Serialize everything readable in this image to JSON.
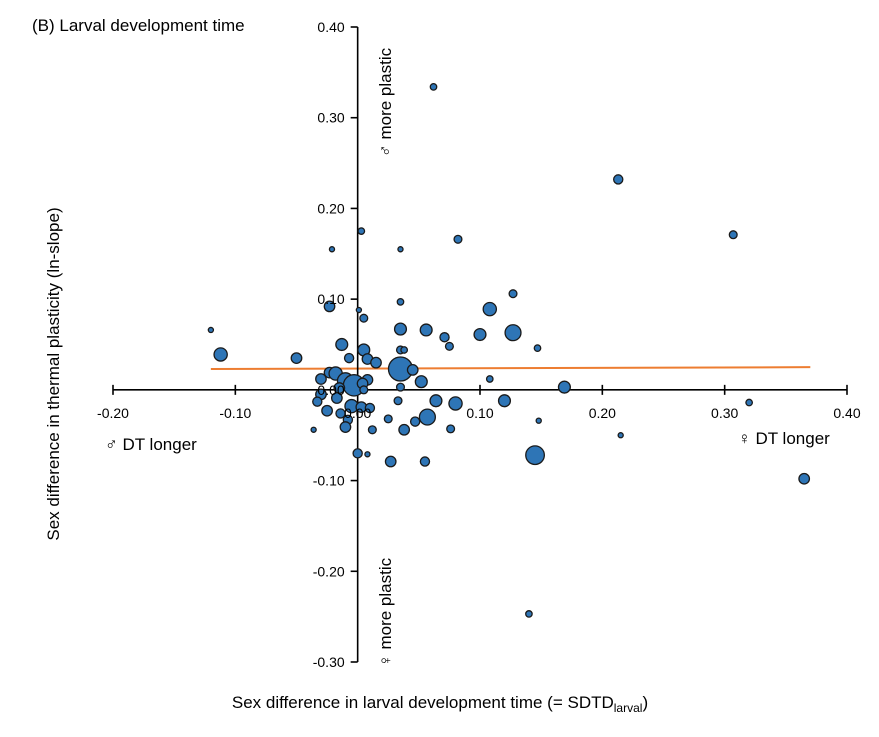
{
  "chart_data": {
    "type": "scatter",
    "title": "(B) Larval development time",
    "xlabel": "Sex difference in larval development time (= SDTD",
    "xlabel_sub": "larval",
    "xlabel_end": ")",
    "ylabel": "Sex difference in thermal plasticity (ln-slope)",
    "xlim": [
      -0.2,
      0.4
    ],
    "ylim": [
      -0.3,
      0.4
    ],
    "xticks": [
      "-0.20",
      "-0.10",
      "0.00",
      "0.10",
      "0.20",
      "0.30",
      "0.40"
    ],
    "yticks": [
      "-0.30",
      "-0.20",
      "-0.10",
      "0.00",
      "0.10",
      "0.20",
      "0.30",
      "0.40"
    ],
    "xtick_values": [
      -0.2,
      -0.1,
      0.0,
      0.1,
      0.2,
      0.3,
      0.4
    ],
    "ytick_values": [
      -0.3,
      -0.2,
      -0.1,
      0.0,
      0.1,
      0.2,
      0.3,
      0.4
    ],
    "annotations": {
      "male_dt_longer": "♂ DT longer",
      "female_dt_longer": "♀ DT longer",
      "male_more_plastic": "♂ more plastic",
      "female_more_plastic": "♀ more plastic"
    },
    "trend_line": {
      "x": [
        -0.12,
        0.37
      ],
      "y": [
        0.023,
        0.025
      ],
      "color": "#ed7d31"
    },
    "point_color": "#2e75b6",
    "points": [
      {
        "x": 0.062,
        "y": 0.334,
        "size": 1.5
      },
      {
        "x": 0.213,
        "y": 0.232,
        "size": 2.5
      },
      {
        "x": 0.307,
        "y": 0.171,
        "size": 2
      },
      {
        "x": 0.003,
        "y": 0.175,
        "size": 1.5
      },
      {
        "x": 0.082,
        "y": 0.166,
        "size": 2
      },
      {
        "x": -0.021,
        "y": 0.155,
        "size": 1
      },
      {
        "x": 0.035,
        "y": 0.155,
        "size": 1
      },
      {
        "x": 0.127,
        "y": 0.106,
        "size": 2
      },
      {
        "x": 0.035,
        "y": 0.097,
        "size": 1.5
      },
      {
        "x": -0.023,
        "y": 0.092,
        "size": 3
      },
      {
        "x": 0.108,
        "y": 0.089,
        "size": 4
      },
      {
        "x": 0.001,
        "y": 0.088,
        "size": 1
      },
      {
        "x": 0.005,
        "y": 0.079,
        "size": 2
      },
      {
        "x": -0.12,
        "y": 0.066,
        "size": 1
      },
      {
        "x": 0.035,
        "y": 0.067,
        "size": 3.5
      },
      {
        "x": 0.056,
        "y": 0.066,
        "size": 3.5
      },
      {
        "x": 0.127,
        "y": 0.063,
        "size": 5
      },
      {
        "x": 0.1,
        "y": 0.061,
        "size": 3.5
      },
      {
        "x": 0.071,
        "y": 0.058,
        "size": 2.5
      },
      {
        "x": -0.013,
        "y": 0.05,
        "size": 3.5
      },
      {
        "x": 0.075,
        "y": 0.048,
        "size": 2
      },
      {
        "x": 0.035,
        "y": 0.044,
        "size": 2
      },
      {
        "x": 0.147,
        "y": 0.046,
        "size": 1.5
      },
      {
        "x": -0.112,
        "y": 0.039,
        "size": 4
      },
      {
        "x": 0.005,
        "y": 0.044,
        "size": 3.5
      },
      {
        "x": 0.038,
        "y": 0.044,
        "size": 1.5
      },
      {
        "x": -0.05,
        "y": 0.035,
        "size": 3
      },
      {
        "x": -0.007,
        "y": 0.035,
        "size": 2.5
      },
      {
        "x": 0.008,
        "y": 0.034,
        "size": 3
      },
      {
        "x": 0.015,
        "y": 0.03,
        "size": 3
      },
      {
        "x": 0.035,
        "y": 0.029,
        "size": 2.5
      },
      {
        "x": 0.035,
        "y": 0.023,
        "size": 8
      },
      {
        "x": 0.045,
        "y": 0.022,
        "size": 3
      },
      {
        "x": -0.023,
        "y": 0.019,
        "size": 3
      },
      {
        "x": -0.018,
        "y": 0.018,
        "size": 4
      },
      {
        "x": -0.03,
        "y": 0.012,
        "size": 3
      },
      {
        "x": 0.108,
        "y": 0.012,
        "size": 1.5
      },
      {
        "x": 0.008,
        "y": 0.011,
        "size": 3
      },
      {
        "x": -0.01,
        "y": 0.01,
        "size": 5
      },
      {
        "x": -0.003,
        "y": 0.005,
        "size": 7
      },
      {
        "x": 0.004,
        "y": 0.007,
        "size": 3
      },
      {
        "x": -0.015,
        "y": 0.002,
        "size": 3
      },
      {
        "x": 0.035,
        "y": 0.003,
        "size": 2
      },
      {
        "x": 0.052,
        "y": 0.009,
        "size": 3.5
      },
      {
        "x": 0.005,
        "y": 0.0,
        "size": 2
      },
      {
        "x": 0.169,
        "y": 0.003,
        "size": 3.5
      },
      {
        "x": -0.03,
        "y": -0.005,
        "size": 3
      },
      {
        "x": -0.017,
        "y": -0.009,
        "size": 3
      },
      {
        "x": -0.033,
        "y": -0.013,
        "size": 2.5
      },
      {
        "x": 0.033,
        "y": -0.012,
        "size": 2
      },
      {
        "x": 0.064,
        "y": -0.012,
        "size": 3.5
      },
      {
        "x": 0.08,
        "y": -0.015,
        "size": 4
      },
      {
        "x": 0.12,
        "y": -0.012,
        "size": 3.5
      },
      {
        "x": 0.32,
        "y": -0.014,
        "size": 1.5
      },
      {
        "x": -0.005,
        "y": -0.018,
        "size": 4
      },
      {
        "x": 0.003,
        "y": -0.019,
        "size": 3
      },
      {
        "x": -0.025,
        "y": -0.023,
        "size": 3
      },
      {
        "x": 0.01,
        "y": -0.02,
        "size": 2.5
      },
      {
        "x": -0.014,
        "y": -0.026,
        "size": 2.5
      },
      {
        "x": -0.008,
        "y": -0.033,
        "size": 2.5
      },
      {
        "x": 0.025,
        "y": -0.032,
        "size": 2
      },
      {
        "x": 0.057,
        "y": -0.03,
        "size": 5
      },
      {
        "x": 0.047,
        "y": -0.035,
        "size": 2.5
      },
      {
        "x": 0.148,
        "y": -0.034,
        "size": 1
      },
      {
        "x": -0.01,
        "y": -0.041,
        "size": 3
      },
      {
        "x": 0.012,
        "y": -0.044,
        "size": 2
      },
      {
        "x": 0.038,
        "y": -0.044,
        "size": 3
      },
      {
        "x": 0.076,
        "y": -0.043,
        "size": 2
      },
      {
        "x": -0.036,
        "y": -0.044,
        "size": 1
      },
      {
        "x": 0.215,
        "y": -0.05,
        "size": 1
      },
      {
        "x": 0.0,
        "y": -0.07,
        "size": 2.5
      },
      {
        "x": 0.008,
        "y": -0.071,
        "size": 1
      },
      {
        "x": 0.145,
        "y": -0.072,
        "size": 6
      },
      {
        "x": 0.027,
        "y": -0.079,
        "size": 3
      },
      {
        "x": 0.055,
        "y": -0.079,
        "size": 2.5
      },
      {
        "x": 0.365,
        "y": -0.098,
        "size": 3
      },
      {
        "x": 0.14,
        "y": -0.247,
        "size": 1.5
      }
    ]
  }
}
